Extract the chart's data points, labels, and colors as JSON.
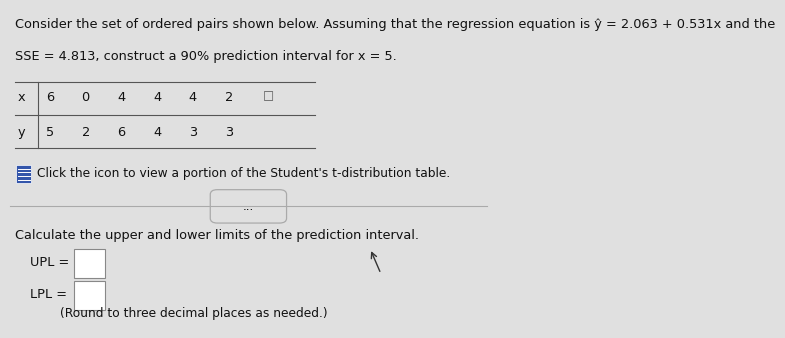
{
  "title_line1": "Consider the set of ordered pairs shown below. Assuming that the regression equation is ŷ = 2.063 + 0.531x and the",
  "title_line2": "SSE = 4.813, construct a 90% prediction interval for x = 5.",
  "x_label": "x",
  "y_label": "y",
  "x_values": [
    "6",
    "0",
    "4",
    "4",
    "4",
    "2"
  ],
  "y_values": [
    "5",
    "2",
    "6",
    "4",
    "3",
    "3"
  ],
  "click_text": "Click the icon to view a portion of the Student's t-distribution table.",
  "divider_dots": "...",
  "section2_text": "Calculate the upper and lower limits of the prediction interval.",
  "upl_label": "UPL =",
  "lpl_label": "LPL =",
  "round_note": "(Round to three decimal places as needed.)",
  "bg_color": "#e0e0e0",
  "text_color": "#111111",
  "table_line_color": "#555555",
  "icon_color": "#3355aa",
  "divider_color": "#aaaaaa",
  "font_size_main": 9.3,
  "font_size_table": 9.3,
  "font_size_small": 8.8
}
